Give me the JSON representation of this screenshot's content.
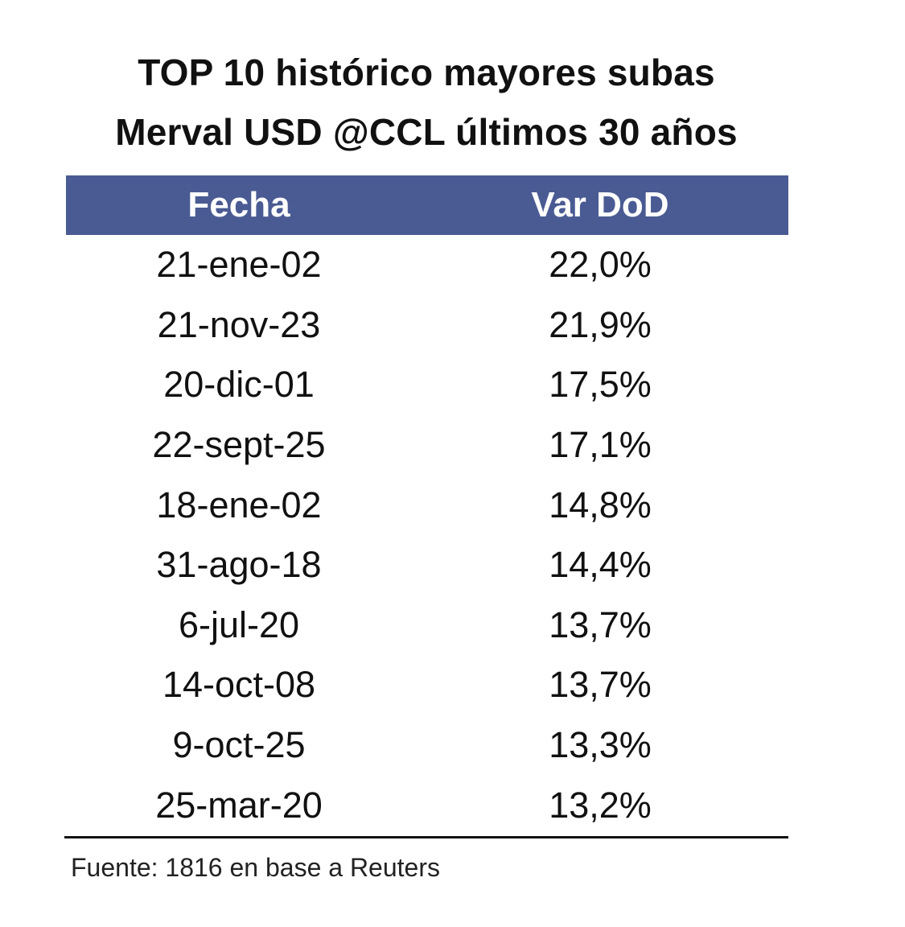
{
  "title": {
    "line1": "TOP 10 histórico mayores subas",
    "line2": "Merval USD @CCL últimos 30 años"
  },
  "chart_data": {
    "type": "table",
    "columns": [
      "Fecha",
      "Var DoD"
    ],
    "rows": [
      [
        "21-ene-02",
        "22,0%"
      ],
      [
        "21-nov-23",
        "21,9%"
      ],
      [
        "20-dic-01",
        "17,5%"
      ],
      [
        "22-sept-25",
        "17,1%"
      ],
      [
        "18-ene-02",
        "14,8%"
      ],
      [
        "31-ago-18",
        "14,4%"
      ],
      [
        "6-jul-20",
        "13,7%"
      ],
      [
        "14-oct-08",
        "13,7%"
      ],
      [
        "9-oct-25",
        "13,3%"
      ],
      [
        "25-mar-20",
        "13,2%"
      ]
    ]
  },
  "source": "Fuente: 1816 en base a Reuters",
  "colors": {
    "header_bg": "#4a5b93",
    "header_text": "#ffffff",
    "text": "#111111"
  }
}
